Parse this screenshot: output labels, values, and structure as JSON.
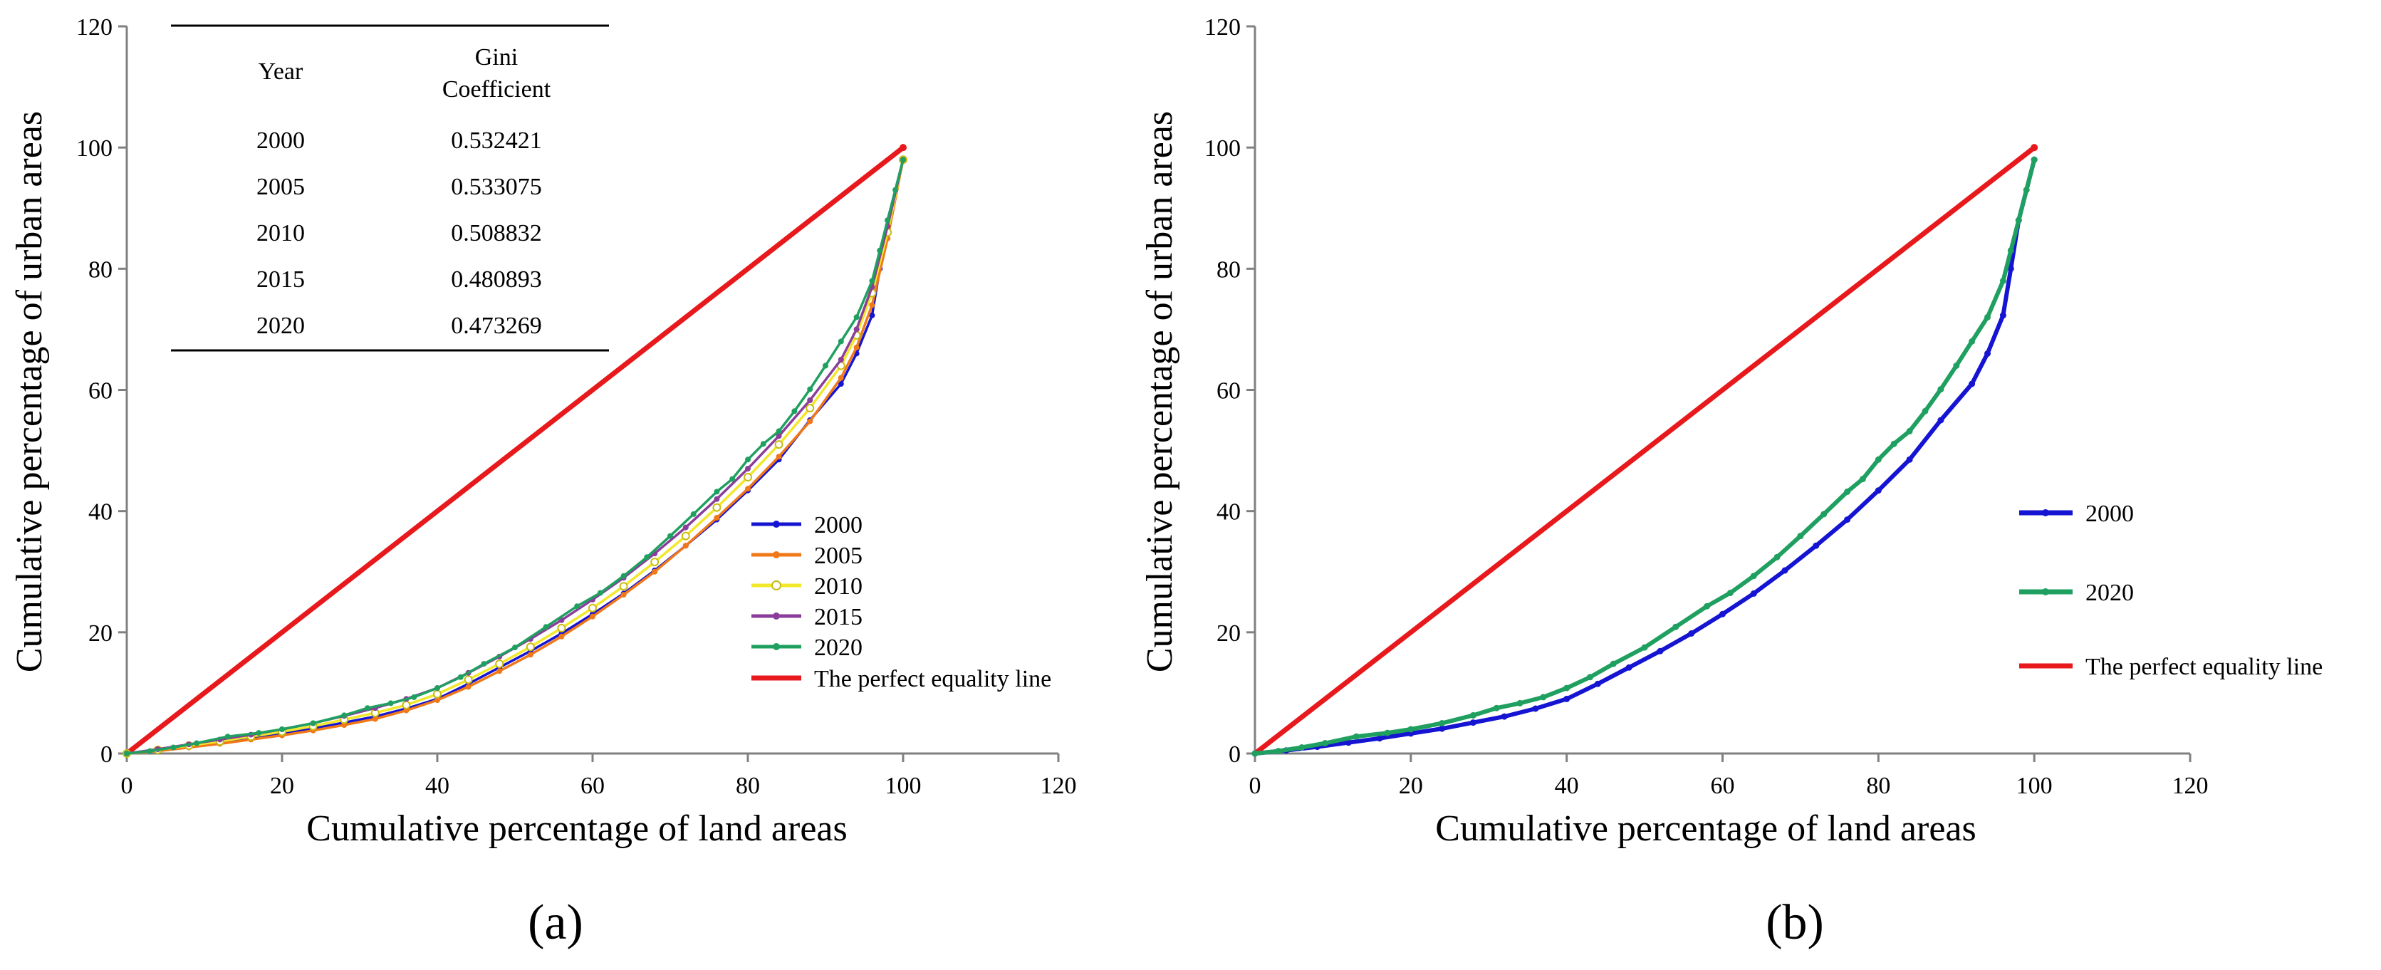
{
  "colors": {
    "2000": "#1414d2",
    "2005": "#f07818",
    "2010": "#f2e82a",
    "2015": "#8a3e9a",
    "2020": "#1fa060",
    "equality": "#e8191c",
    "axis": "#808080"
  },
  "chart_data": [
    {
      "type": "line",
      "panel_label": "(a)",
      "xlabel": "Cumulative percentage of land areas",
      "ylabel": "Cumulative percentage of urban areas",
      "xlim": [
        0,
        120
      ],
      "ylim": [
        0,
        120
      ],
      "xticks": [
        0,
        20,
        40,
        60,
        80,
        100,
        120
      ],
      "yticks": [
        0,
        20,
        40,
        60,
        80,
        100,
        120
      ],
      "legend_position": "center-right",
      "series": [
        {
          "name": "2000",
          "marker": "filled",
          "points": [
            [
              0,
              0
            ],
            [
              4,
              0.5
            ],
            [
              8,
              1.1
            ],
            [
              12,
              1.8
            ],
            [
              16,
              2.5
            ],
            [
              20,
              3.3
            ],
            [
              24,
              4.1
            ],
            [
              28,
              5.1
            ],
            [
              32,
              6.1
            ],
            [
              36,
              7.4
            ],
            [
              40,
              9
            ],
            [
              44,
              11.5
            ],
            [
              48,
              14.2
            ],
            [
              52,
              16.9
            ],
            [
              56,
              19.8
            ],
            [
              60,
              23
            ],
            [
              64,
              26.4
            ],
            [
              68,
              30.2
            ],
            [
              72,
              34.3
            ],
            [
              76,
              38.6
            ],
            [
              80,
              43.4
            ],
            [
              84,
              48.5
            ],
            [
              88,
              55
            ],
            [
              92,
              61
            ],
            [
              94,
              66
            ],
            [
              96,
              72.3
            ],
            [
              97,
              80
            ],
            [
              98,
              88
            ],
            [
              100,
              98
            ]
          ]
        },
        {
          "name": "2005",
          "marker": "filled",
          "points": [
            [
              0,
              0
            ],
            [
              4,
              0.4
            ],
            [
              8,
              1
            ],
            [
              12,
              1.6
            ],
            [
              16,
              2.3
            ],
            [
              20,
              3
            ],
            [
              24,
              3.8
            ],
            [
              28,
              4.7
            ],
            [
              32,
              5.7
            ],
            [
              36,
              7.1
            ],
            [
              40,
              8.8
            ],
            [
              44,
              11
            ],
            [
              48,
              13.6
            ],
            [
              52,
              16.3
            ],
            [
              56,
              19.3
            ],
            [
              60,
              22.6
            ],
            [
              64,
              26.2
            ],
            [
              68,
              30
            ],
            [
              72,
              34.3
            ],
            [
              76,
              38.9
            ],
            [
              80,
              43.7
            ],
            [
              84,
              49
            ],
            [
              88,
              54.8
            ],
            [
              92,
              62
            ],
            [
              94,
              67
            ],
            [
              96,
              74
            ],
            [
              98,
              85
            ],
            [
              100,
              98
            ]
          ]
        },
        {
          "name": "2010",
          "marker": "open",
          "points": [
            [
              0,
              0
            ],
            [
              4,
              0.6
            ],
            [
              8,
              1.3
            ],
            [
              12,
              2
            ],
            [
              16,
              2.8
            ],
            [
              20,
              3.6
            ],
            [
              24,
              4.5
            ],
            [
              28,
              5.6
            ],
            [
              32,
              6.7
            ],
            [
              36,
              8
            ],
            [
              40,
              9.8
            ],
            [
              44,
              12.2
            ],
            [
              48,
              14.8
            ],
            [
              52,
              17.6
            ],
            [
              56,
              20.7
            ],
            [
              60,
              24
            ],
            [
              64,
              27.6
            ],
            [
              68,
              31.6
            ],
            [
              72,
              35.9
            ],
            [
              76,
              40.6
            ],
            [
              80,
              45.6
            ],
            [
              84,
              51
            ],
            [
              88,
              57
            ],
            [
              92,
              64
            ],
            [
              94,
              69
            ],
            [
              96,
              76
            ],
            [
              98,
              86
            ],
            [
              100,
              98
            ]
          ]
        },
        {
          "name": "2015",
          "marker": "filled",
          "points": [
            [
              0,
              0
            ],
            [
              4,
              0.7
            ],
            [
              8,
              1.5
            ],
            [
              12,
              2.3
            ],
            [
              16,
              3.1
            ],
            [
              20,
              4
            ],
            [
              24,
              5
            ],
            [
              28,
              6.2
            ],
            [
              32,
              7.5
            ],
            [
              36,
              9
            ],
            [
              40,
              10.8
            ],
            [
              44,
              13.3
            ],
            [
              48,
              16
            ],
            [
              52,
              18.9
            ],
            [
              56,
              22
            ],
            [
              60,
              25.4
            ],
            [
              64,
              29
            ],
            [
              68,
              33
            ],
            [
              72,
              37.3
            ],
            [
              76,
              42
            ],
            [
              80,
              47
            ],
            [
              84,
              52.4
            ],
            [
              88,
              58.3
            ],
            [
              92,
              65
            ],
            [
              94,
              70
            ],
            [
              96,
              77
            ],
            [
              98,
              87
            ],
            [
              100,
              98
            ]
          ]
        },
        {
          "name": "2020",
          "marker": "filled",
          "points": [
            [
              0,
              0
            ],
            [
              3,
              0.4
            ],
            [
              6,
              1
            ],
            [
              9,
              1.7
            ],
            [
              13,
              2.8
            ],
            [
              17,
              3.4
            ],
            [
              20,
              4
            ],
            [
              24,
              5
            ],
            [
              28,
              6.3
            ],
            [
              31,
              7.5
            ],
            [
              34,
              8.3
            ],
            [
              37,
              9.3
            ],
            [
              40,
              10.8
            ],
            [
              43,
              12.6
            ],
            [
              46,
              14.8
            ],
            [
              50,
              17.5
            ],
            [
              54,
              20.9
            ],
            [
              58,
              24.3
            ],
            [
              61,
              26.5
            ],
            [
              64,
              29.3
            ],
            [
              67,
              32.4
            ],
            [
              70,
              35.9
            ],
            [
              73,
              39.5
            ],
            [
              76,
              43.2
            ],
            [
              78,
              45.3
            ],
            [
              80,
              48.5
            ],
            [
              82,
              51.1
            ],
            [
              84,
              53.2
            ],
            [
              86,
              56.5
            ],
            [
              88,
              60.1
            ],
            [
              90,
              64
            ],
            [
              92,
              68
            ],
            [
              94,
              72
            ],
            [
              96,
              78
            ],
            [
              97,
              83
            ],
            [
              98,
              88
            ],
            [
              99,
              93
            ],
            [
              100,
              98
            ]
          ]
        },
        {
          "name": "The perfect equality line",
          "marker": "none",
          "points": [
            [
              0,
              0
            ],
            [
              100,
              100
            ]
          ]
        }
      ],
      "table": {
        "header_year": "Year",
        "header_gini": "Gini Coefficient",
        "header_gini_line1": "Gini",
        "header_gini_line2": "Coefficient",
        "rows": [
          {
            "year": "2000",
            "gini": "0.532421"
          },
          {
            "year": "2005",
            "gini": "0.533075"
          },
          {
            "year": "2010",
            "gini": "0.508832"
          },
          {
            "year": "2015",
            "gini": "0.480893"
          },
          {
            "year": "2020",
            "gini": "0.473269"
          }
        ]
      }
    },
    {
      "type": "line",
      "panel_label": "(b)",
      "xlabel": "Cumulative percentage of land areas",
      "ylabel": "Cumulative percentage of urban areas",
      "xlim": [
        0,
        120
      ],
      "ylim": [
        0,
        120
      ],
      "xticks": [
        0,
        20,
        40,
        60,
        80,
        100,
        120
      ],
      "yticks": [
        0,
        20,
        40,
        60,
        80,
        100,
        120
      ],
      "legend_position": "center-right",
      "series": [
        {
          "name": "2000",
          "marker": "filled",
          "points": [
            [
              0,
              0
            ],
            [
              4,
              0.5
            ],
            [
              8,
              1.1
            ],
            [
              12,
              1.8
            ],
            [
              16,
              2.5
            ],
            [
              20,
              3.3
            ],
            [
              24,
              4.1
            ],
            [
              28,
              5.1
            ],
            [
              32,
              6.1
            ],
            [
              36,
              7.4
            ],
            [
              40,
              9
            ],
            [
              44,
              11.5
            ],
            [
              48,
              14.2
            ],
            [
              52,
              16.9
            ],
            [
              56,
              19.8
            ],
            [
              60,
              23
            ],
            [
              64,
              26.4
            ],
            [
              68,
              30.2
            ],
            [
              72,
              34.3
            ],
            [
              76,
              38.6
            ],
            [
              80,
              43.4
            ],
            [
              84,
              48.5
            ],
            [
              88,
              55
            ],
            [
              92,
              61
            ],
            [
              94,
              66
            ],
            [
              96,
              72.3
            ],
            [
              97,
              80
            ],
            [
              98,
              88
            ],
            [
              100,
              98
            ]
          ]
        },
        {
          "name": "2020",
          "marker": "filled",
          "points": [
            [
              0,
              0
            ],
            [
              3,
              0.4
            ],
            [
              6,
              1
            ],
            [
              9,
              1.7
            ],
            [
              13,
              2.8
            ],
            [
              17,
              3.4
            ],
            [
              20,
              4
            ],
            [
              24,
              5
            ],
            [
              28,
              6.3
            ],
            [
              31,
              7.5
            ],
            [
              34,
              8.3
            ],
            [
              37,
              9.3
            ],
            [
              40,
              10.8
            ],
            [
              43,
              12.6
            ],
            [
              46,
              14.8
            ],
            [
              50,
              17.5
            ],
            [
              54,
              20.9
            ],
            [
              58,
              24.3
            ],
            [
              61,
              26.5
            ],
            [
              64,
              29.3
            ],
            [
              67,
              32.4
            ],
            [
              70,
              35.9
            ],
            [
              73,
              39.5
            ],
            [
              76,
              43.2
            ],
            [
              78,
              45.3
            ],
            [
              80,
              48.5
            ],
            [
              82,
              51.1
            ],
            [
              84,
              53.2
            ],
            [
              86,
              56.5
            ],
            [
              88,
              60.1
            ],
            [
              90,
              64
            ],
            [
              92,
              68
            ],
            [
              94,
              72
            ],
            [
              96,
              78
            ],
            [
              97,
              83
            ],
            [
              98,
              88
            ],
            [
              99,
              93
            ],
            [
              100,
              98
            ]
          ]
        },
        {
          "name": "The perfect equality line",
          "marker": "none",
          "points": [
            [
              0,
              0
            ],
            [
              100,
              100
            ]
          ]
        }
      ]
    }
  ]
}
